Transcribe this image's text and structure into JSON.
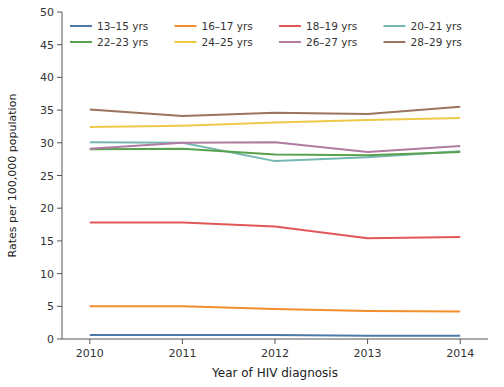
{
  "chart_data": {
    "type": "line",
    "x_label": "Year of HIV diagnosis",
    "y_label": "Rates per 100,000 population",
    "x": [
      2010,
      2011,
      2012,
      2013,
      2014
    ],
    "series": [
      {
        "name": "13–15 yrs",
        "values": [
          0.6,
          0.6,
          0.6,
          0.5,
          0.5
        ]
      },
      {
        "name": "16–17 yrs",
        "values": [
          5.0,
          5.0,
          4.6,
          4.3,
          4.2
        ]
      },
      {
        "name": "18–19 yrs",
        "values": [
          17.8,
          17.8,
          17.2,
          15.4,
          15.6
        ]
      },
      {
        "name": "20–21 yrs",
        "values": [
          30.1,
          30.0,
          27.2,
          27.8,
          28.7
        ]
      },
      {
        "name": "22–23 yrs",
        "values": [
          29.0,
          29.1,
          28.2,
          28.1,
          28.6
        ]
      },
      {
        "name": "24–25 yrs",
        "values": [
          32.4,
          32.6,
          33.1,
          33.5,
          33.8
        ]
      },
      {
        "name": "26–27 yrs",
        "values": [
          29.1,
          30.0,
          30.1,
          28.6,
          29.5
        ]
      },
      {
        "name": "28–29 yrs",
        "values": [
          35.1,
          34.1,
          34.6,
          34.4,
          35.5
        ]
      }
    ],
    "xlim": [
      2009.7,
      2014.3
    ],
    "xticks": [
      2010,
      2011,
      2012,
      2013,
      2014
    ],
    "ylim": [
      0,
      50
    ],
    "yticks": [
      0,
      5,
      10,
      15,
      20,
      25,
      30,
      35,
      40,
      45,
      50
    ],
    "grid": false,
    "legend": "upper left",
    "background_color": "#ffffff"
  }
}
